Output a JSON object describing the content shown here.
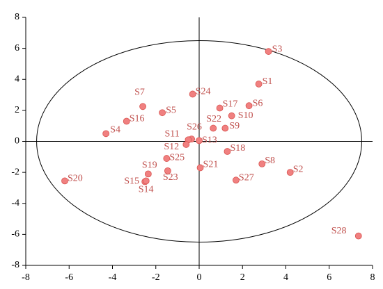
{
  "chart_data": {
    "type": "scatter",
    "labels": [
      "S3",
      "S1",
      "S6",
      "S10",
      "S17",
      "S9",
      "S22",
      "S24",
      "S7",
      "S5",
      "S16",
      "S4",
      "S26",
      "S11",
      "S12",
      "S13",
      "S18",
      "S8",
      "S2",
      "S27",
      "S21",
      "S25",
      "S23",
      "S19",
      "S15",
      "S14",
      "S20",
      "S28"
    ],
    "x": [
      3.2,
      2.75,
      2.3,
      1.5,
      0.95,
      1.2,
      0.65,
      -0.3,
      -2.6,
      -1.7,
      -3.35,
      -4.3,
      -0.35,
      -0.5,
      -0.6,
      0,
      1.3,
      2.9,
      4.2,
      1.7,
      0.05,
      -1.5,
      -1.45,
      -2.35,
      -2.5,
      -2.45,
      -6.2,
      7.35
    ],
    "values": [
      5.8,
      3.7,
      2.3,
      1.65,
      2.15,
      0.85,
      0.85,
      3.05,
      2.25,
      1.85,
      1.3,
      0.5,
      0.15,
      0.1,
      -0.2,
      0.05,
      -0.65,
      -1.45,
      -2.0,
      -2.5,
      -1.7,
      -1.1,
      -1.9,
      -2.1,
      -2.6,
      -2.55,
      -2.55,
      -6.1
    ],
    "color": "#f08080",
    "ellipse": {
      "rx": 7.5,
      "ry": 6.5
    },
    "xlim": [
      -8,
      8
    ],
    "ylim": [
      -8,
      8
    ],
    "xticks": [
      -8,
      -6,
      -4,
      -2,
      0,
      2,
      4,
      6,
      8
    ],
    "yticks": [
      -8,
      -6,
      -4,
      -2,
      0,
      2,
      4,
      6,
      8
    ]
  }
}
